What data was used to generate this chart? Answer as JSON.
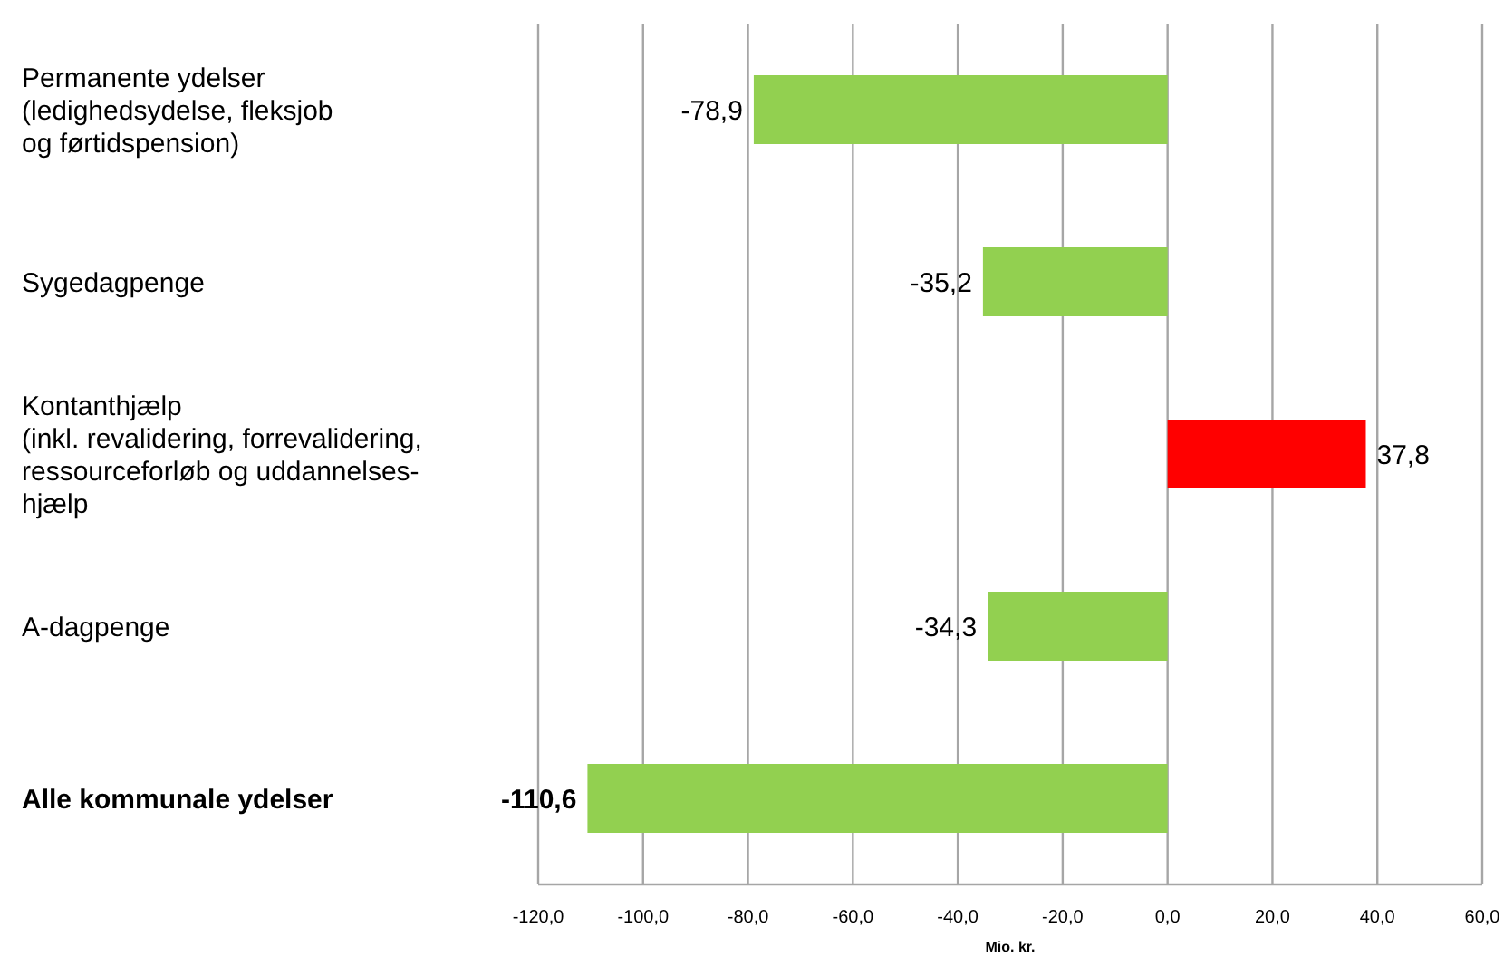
{
  "chart_data": {
    "type": "bar",
    "orientation": "horizontal",
    "xlabel": "Mio. kr.",
    "categories": [
      "Permanente ydelser\n(ledighedsydelse, fleksjob\nog førtidspension)",
      "Sygedagpenge",
      "Kontanthjælp\n(inkl. revalidering, forrevalidering,\nressourceforløb og uddannelses-\nhjælp",
      "A-dagpenge",
      "Alle kommunale ydelser"
    ],
    "values": [
      -78.9,
      -35.2,
      37.8,
      -34.3,
      -110.6
    ],
    "colors": [
      "#92d050",
      "#92d050",
      "#ff0000",
      "#92d050",
      "#92d050"
    ],
    "value_labels": [
      "-78,9",
      "-35,2",
      "37,8",
      "-34,3",
      "-110,6"
    ],
    "xlim": [
      -120,
      60
    ],
    "xticks": [
      {
        "value": -120,
        "label": "-120,0"
      },
      {
        "value": -100,
        "label": "-100,0"
      },
      {
        "value": -80,
        "label": "-80,0"
      },
      {
        "value": -60,
        "label": "-60,0"
      },
      {
        "value": -40,
        "label": "-40,0"
      },
      {
        "value": -20,
        "label": "-20,0"
      },
      {
        "value": 0,
        "label": "0,0"
      },
      {
        "value": 20,
        "label": "20,0"
      },
      {
        "value": 40,
        "label": "40,0"
      },
      {
        "value": 60,
        "label": "60,0"
      }
    ],
    "grid": "x"
  }
}
